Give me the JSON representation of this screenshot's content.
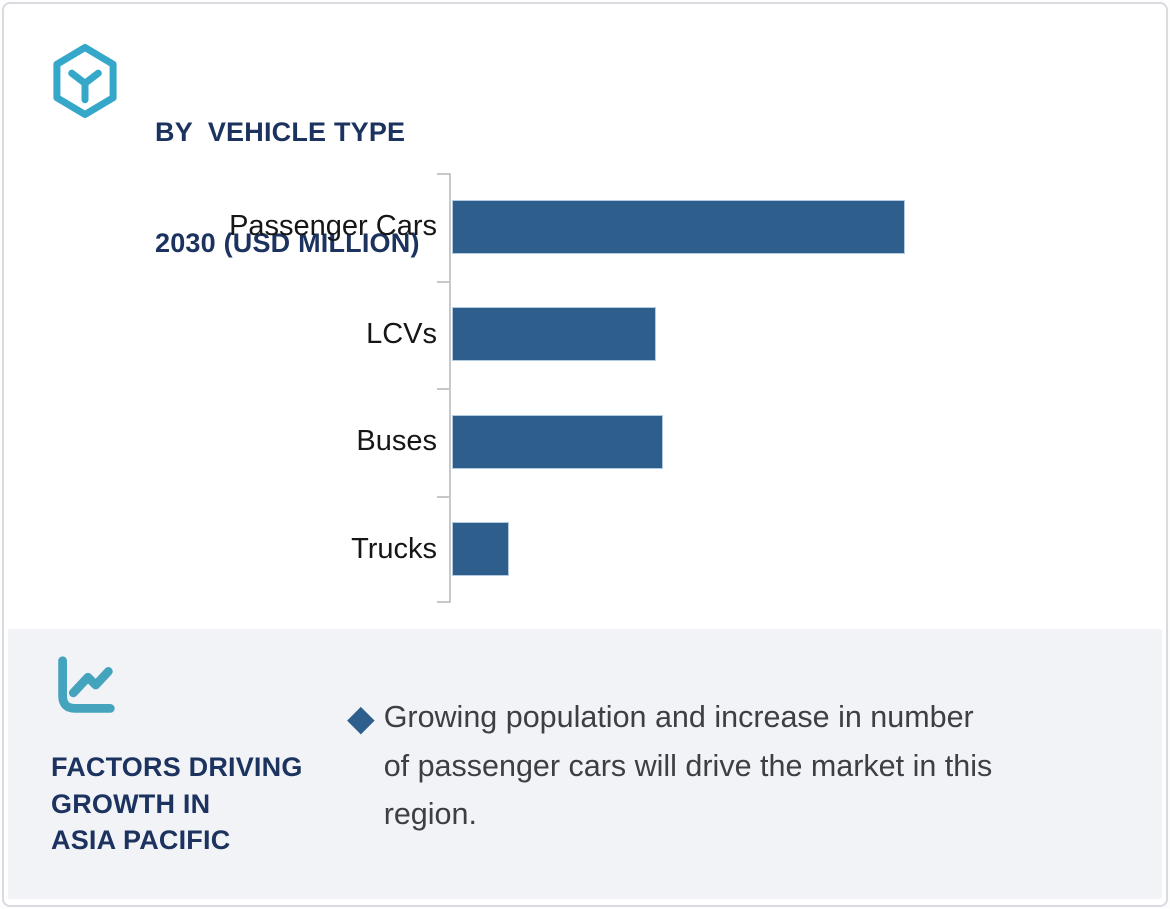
{
  "header": {
    "icon": "hexagon-cube-icon",
    "title_lines": [
      "BY  VEHICLE TYPE",
      "2030 (USD MILLION)"
    ]
  },
  "chart_data": {
    "type": "bar",
    "orientation": "horizontal",
    "title": "BY VEHICLE TYPE 2030 (USD MILLION)",
    "categories": [
      "Passenger Cars",
      "LCVs",
      "Buses",
      "Trucks"
    ],
    "values": [
      100,
      45,
      46.5,
      12.5
    ],
    "value_note": "no numeric axis shown; values estimated from bar lengths, Passenger Cars = 100",
    "xlabel": "",
    "ylabel": "",
    "xlim": [
      0,
      150
    ],
    "grid": false,
    "legend": false,
    "bar_color": "#2E5F8C"
  },
  "factors": {
    "icon": "line-chart-icon",
    "label_lines": [
      "FACTORS DRIVING",
      "GROWTH IN",
      "ASIA PACIFIC"
    ],
    "bullet": {
      "marker": "◆",
      "lines": [
        "Growing population and increase in number",
        "of passenger cars will drive the market in this",
        "region."
      ]
    }
  },
  "colors": {
    "accent_teal": "#3AA7C7",
    "navy": "#1C3360",
    "bar_blue": "#2E5F8C",
    "panel_gray": "#F2F3F6",
    "axis_gray": "#C6C8CA",
    "body_text": "#3C4043",
    "card_border": "#D9DBE1"
  }
}
